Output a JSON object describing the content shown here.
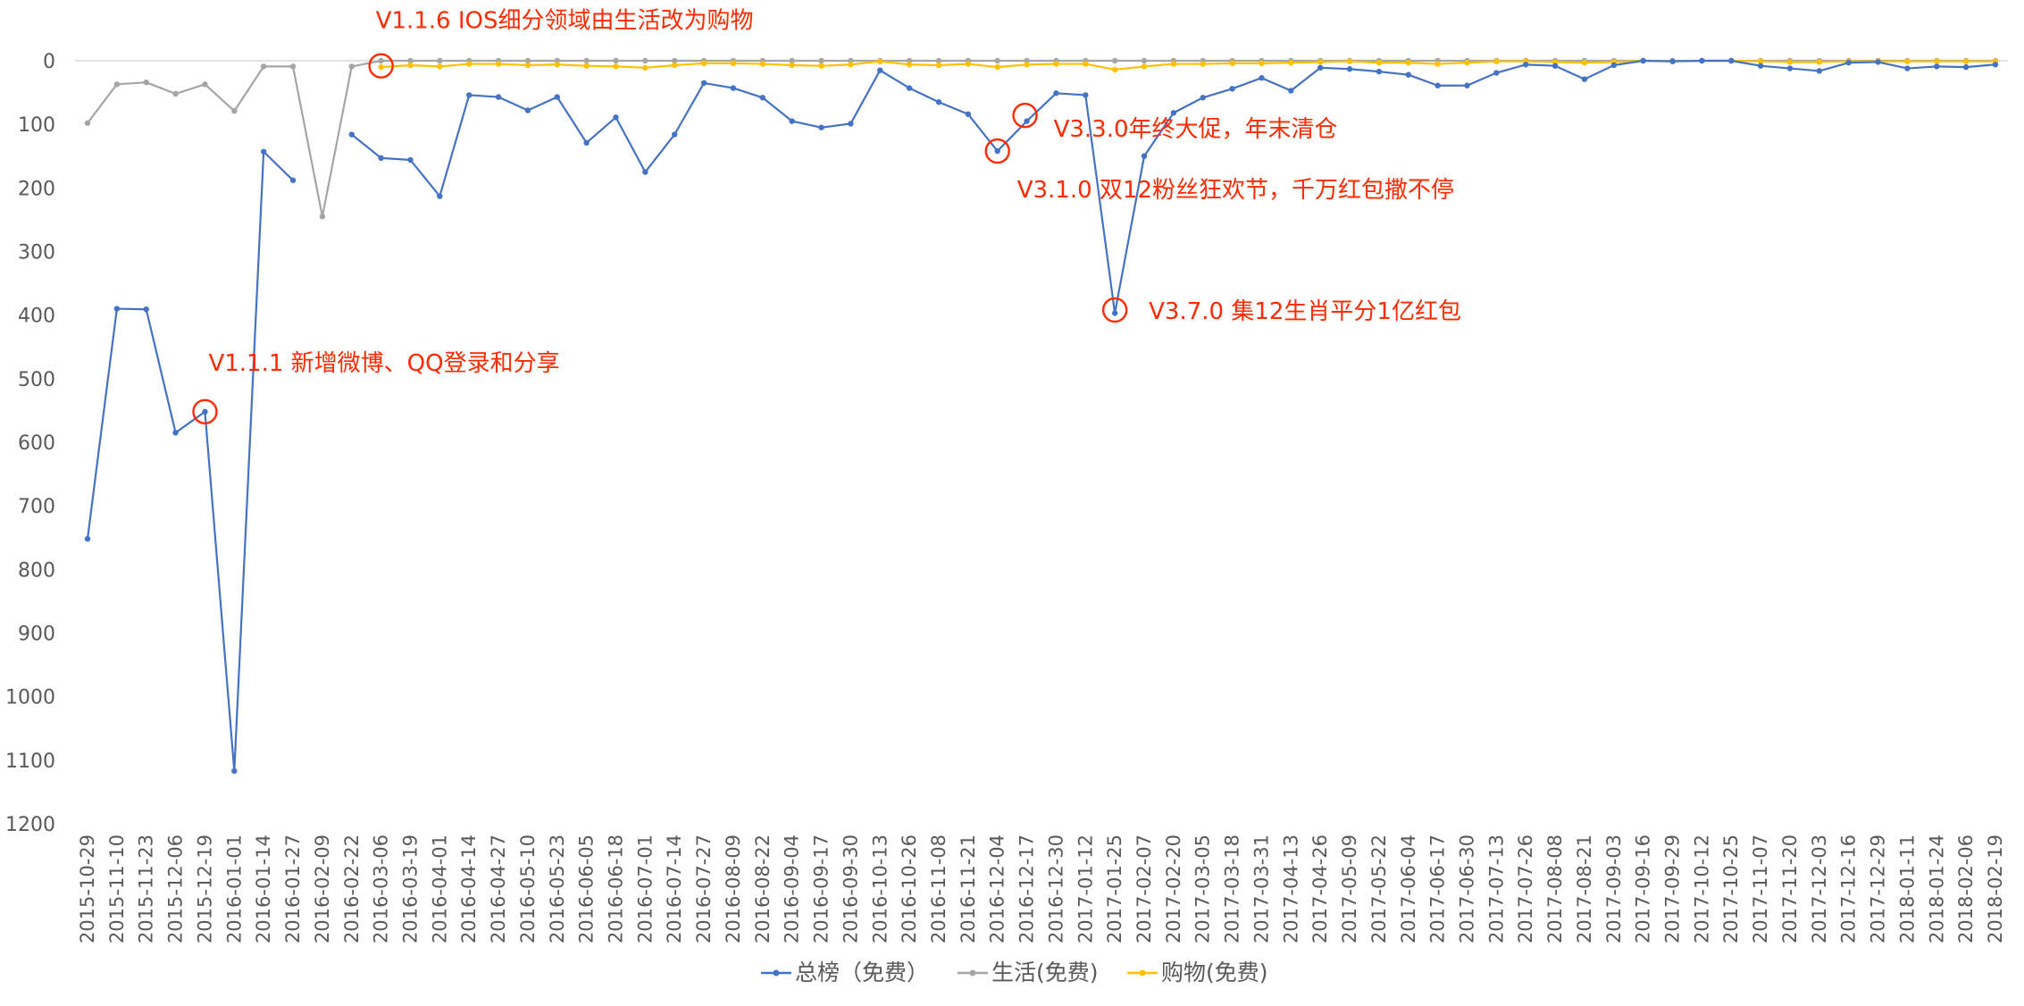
{
  "chart_data": {
    "type": "line",
    "title": "",
    "xlabel": "",
    "ylabel": "",
    "ylim": [
      0,
      1200
    ],
    "y_inverted": true,
    "yticks": [
      0,
      100,
      200,
      300,
      400,
      500,
      600,
      700,
      800,
      900,
      1000,
      1100,
      1200
    ],
    "grid": false,
    "legend_position": "bottom",
    "x": [
      "2015-10-29",
      "2015-11-10",
      "2015-11-23",
      "2015-12-06",
      "2015-12-19",
      "2016-01-01",
      "2016-01-14",
      "2016-01-27",
      "2016-02-09",
      "2016-02-22",
      "2016-03-06",
      "2016-03-19",
      "2016-04-01",
      "2016-04-14",
      "2016-04-27",
      "2016-05-10",
      "2016-05-23",
      "2016-06-05",
      "2016-06-18",
      "2016-07-01",
      "2016-07-14",
      "2016-07-27",
      "2016-08-09",
      "2016-08-22",
      "2016-09-04",
      "2016-09-17",
      "2016-09-30",
      "2016-10-13",
      "2016-10-26",
      "2016-11-08",
      "2016-11-21",
      "2016-12-04",
      "2016-12-17",
      "2016-12-30",
      "2017-01-12",
      "2017-01-25",
      "2017-02-07",
      "2017-02-20",
      "2017-03-05",
      "2017-03-18",
      "2017-03-31",
      "2017-04-13",
      "2017-04-26",
      "2017-05-09",
      "2017-05-22",
      "2017-06-04",
      "2017-06-17",
      "2017-06-30",
      "2017-07-13",
      "2017-07-26",
      "2017-08-08",
      "2017-08-21",
      "2017-09-03",
      "2017-09-16",
      "2017-09-29",
      "2017-10-12",
      "2017-10-25",
      "2017-11-07",
      "2017-11-20",
      "2017-12-03",
      "2017-12-16",
      "2017-12-29",
      "2018-01-11",
      "2018-01-24",
      "2018-02-06",
      "2018-02-19"
    ],
    "series": [
      {
        "name": "总榜（免费）",
        "color": "#4472c4",
        "values": [
          752,
          390,
          391,
          585,
          552,
          1117,
          143,
          188,
          null,
          116,
          153,
          156,
          213,
          54,
          57,
          78,
          57,
          129,
          89,
          175,
          116,
          35,
          43,
          58,
          95,
          105,
          99,
          15,
          43,
          65,
          84,
          142,
          95,
          51,
          54,
          397,
          150,
          82,
          58,
          44,
          27,
          47,
          11,
          13,
          17,
          22,
          39,
          39,
          19,
          6,
          8,
          29,
          7,
          0,
          1,
          0,
          0,
          8,
          12,
          16,
          3,
          2,
          12,
          9,
          10,
          6
        ]
      },
      {
        "name": "生活(免费)",
        "color": "#a5a5a5",
        "values": [
          98,
          37,
          34,
          52,
          37,
          79,
          9,
          9,
          245,
          9,
          0,
          0,
          0,
          0,
          0,
          0,
          0,
          0,
          0,
          0,
          0,
          0,
          0,
          0,
          0,
          0,
          0,
          0,
          0,
          0,
          0,
          0,
          0,
          0,
          0,
          0,
          0,
          0,
          0,
          0,
          0,
          0,
          0,
          0,
          0,
          0,
          0,
          0,
          0,
          0,
          0,
          0,
          0,
          0,
          0,
          0,
          0,
          0,
          0,
          0,
          0,
          0,
          0,
          0,
          0,
          0
        ]
      },
      {
        "name": "购物(免费)",
        "color": "#ffc000",
        "values": [
          null,
          null,
          null,
          null,
          null,
          null,
          null,
          null,
          null,
          null,
          10,
          7,
          9,
          5,
          5,
          7,
          6,
          8,
          9,
          11,
          7,
          4,
          4,
          5,
          7,
          8,
          6,
          1,
          6,
          7,
          5,
          10,
          6,
          5,
          5,
          14,
          9,
          5,
          5,
          4,
          4,
          3,
          2,
          1,
          3,
          3,
          5,
          3,
          1,
          1,
          2,
          3,
          2,
          0,
          1,
          0,
          0,
          1,
          2,
          2,
          1,
          1,
          1,
          1,
          1,
          1
        ]
      }
    ],
    "annotations": [
      {
        "text": "V1.1.6 IOS细分领域由生活改为购物",
        "index": 10,
        "value": 8
      },
      {
        "text": "V1.1.1 新增微博、QQ登录和分享",
        "index": 4,
        "value": 552
      },
      {
        "text": "V3.3.0年终大促，年末清仓",
        "index": 32,
        "value": 86
      },
      {
        "text": "V3.1.0 双12粉丝狂欢节，千万红包撒不停",
        "index": 31,
        "value": 142
      },
      {
        "text": "V3.7.0 集12生肖平分1亿红包",
        "index": 35,
        "value": 392
      }
    ],
    "annotation_color": "#ff2a00"
  }
}
